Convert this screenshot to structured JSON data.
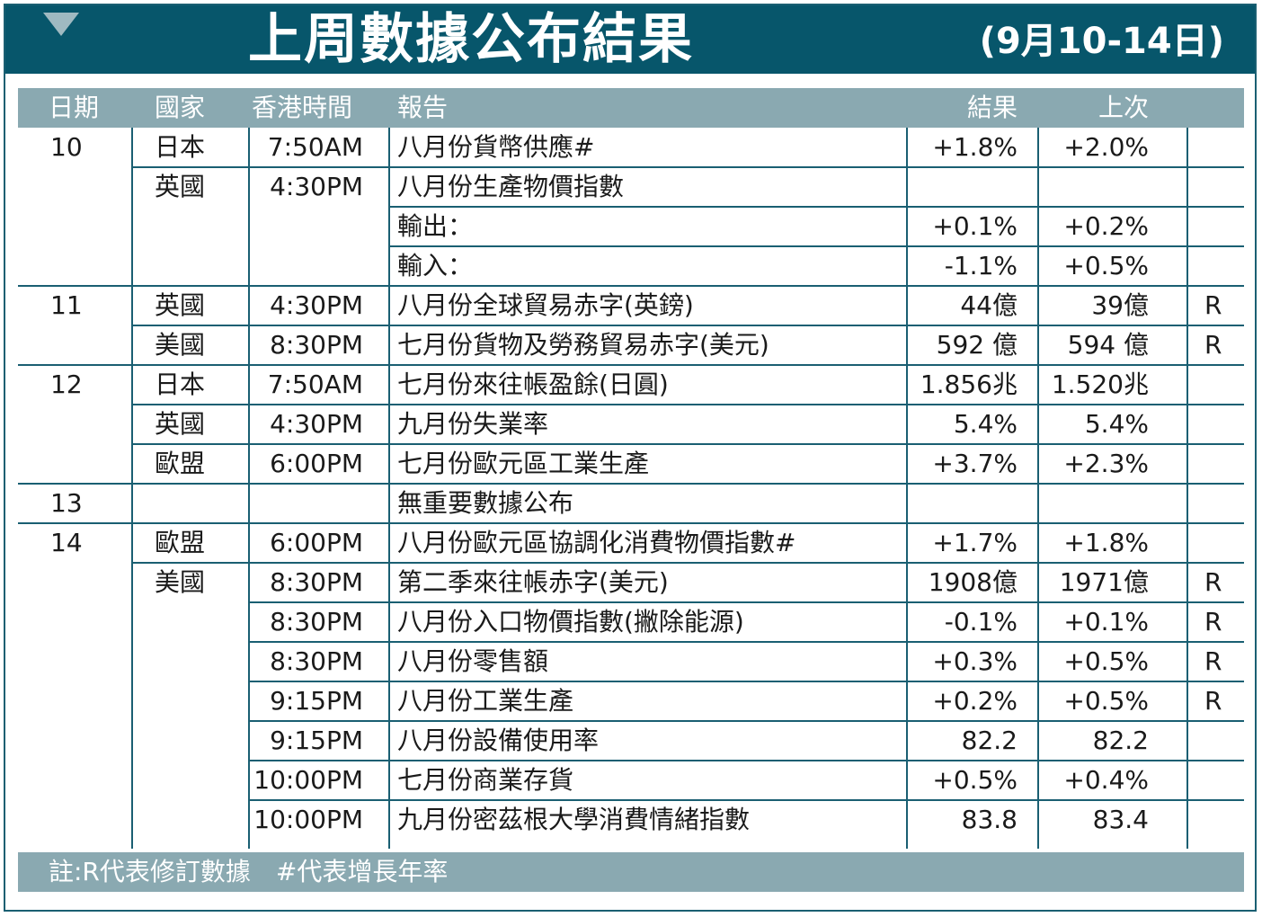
{
  "header": {
    "title": "上周數據公布結果",
    "date_range": "(9月10-14日)"
  },
  "columns": {
    "day": "日期",
    "country": "國家",
    "hk_time": "香港時間",
    "report": "報告",
    "result": "結果",
    "previous": "上次"
  },
  "rows": [
    {
      "day": "10",
      "country": "日本",
      "time": "7:50AM",
      "report": "八月份貨幣供應#",
      "result": "+1.8%",
      "previous": "+2.0%",
      "revised": ""
    },
    {
      "day": "",
      "country": "英國",
      "time": "4:30PM",
      "report": "八月份生產物價指數",
      "result": "",
      "previous": "",
      "revised": ""
    },
    {
      "day": "",
      "country": "",
      "time": "",
      "report": "輸出：",
      "result": "+0.1%",
      "previous": "+0.2%",
      "revised": ""
    },
    {
      "day": "",
      "country": "",
      "time": "",
      "report": "輸入：",
      "result": "-1.1%",
      "previous": "+0.5%",
      "revised": ""
    },
    {
      "day": "11",
      "country": "英國",
      "time": "4:30PM",
      "report": "八月份全球貿易赤字(英鎊)",
      "result": "44億",
      "previous": "39億",
      "revised": "R"
    },
    {
      "day": "",
      "country": "美國",
      "time": "8:30PM",
      "report": "七月份貨物及勞務貿易赤字(美元)",
      "result": "592 億",
      "previous": "594 億",
      "revised": "R"
    },
    {
      "day": "12",
      "country": "日本",
      "time": "7:50AM",
      "report": "七月份來往帳盈餘(日圓)",
      "result": "1.856兆",
      "previous": "1.520兆",
      "revised": ""
    },
    {
      "day": "",
      "country": "英國",
      "time": "4:30PM",
      "report": "九月份失業率",
      "result": "5.4%",
      "previous": "5.4%",
      "revised": ""
    },
    {
      "day": "",
      "country": "歐盟",
      "time": "6:00PM",
      "report": "七月份歐元區工業生產",
      "result": "+3.7%",
      "previous": "+2.3%",
      "revised": ""
    },
    {
      "day": "13",
      "country": "",
      "time": "",
      "report": "無重要數據公布",
      "result": "",
      "previous": "",
      "revised": ""
    },
    {
      "day": "14",
      "country": "歐盟",
      "time": "6:00PM",
      "report": "八月份歐元區協調化消費物價指數#",
      "result": "+1.7%",
      "previous": "+1.8%",
      "revised": ""
    },
    {
      "day": "",
      "country": "美國",
      "time": "8:30PM",
      "report": "第二季來往帳赤字(美元)",
      "result": "1908億",
      "previous": "1971億",
      "revised": "R"
    },
    {
      "day": "",
      "country": "",
      "time": "8:30PM",
      "report": "八月份入口物價指數(撇除能源)",
      "result": "-0.1%",
      "previous": "+0.1%",
      "revised": "R"
    },
    {
      "day": "",
      "country": "",
      "time": "8:30PM",
      "report": "八月份零售額",
      "result": "+0.3%",
      "previous": "+0.5%",
      "revised": "R"
    },
    {
      "day": "",
      "country": "",
      "time": "9:15PM",
      "report": "八月份工業生產",
      "result": "+0.2%",
      "previous": "+0.5%",
      "revised": "R"
    },
    {
      "day": "",
      "country": "",
      "time": "9:15PM",
      "report": "八月份設備使用率",
      "result": "82.2",
      "previous": "82.2",
      "revised": ""
    },
    {
      "day": "",
      "country": "",
      "time": "10:00PM",
      "report": "七月份商業存貨",
      "result": "+0.5%",
      "previous": "+0.4%",
      "revised": ""
    },
    {
      "day": "",
      "country": "",
      "time": "10:00PM",
      "report": "九月份密茲根大學消費情緒指數",
      "result": "83.8",
      "previous": "83.4",
      "revised": ""
    }
  ],
  "footer": {
    "note": "註:R代表修訂數據　#代表增長年率"
  },
  "colors": {
    "banner": "#07566b",
    "header_row": "#8aa9b1",
    "grid": "#1a5f72"
  }
}
